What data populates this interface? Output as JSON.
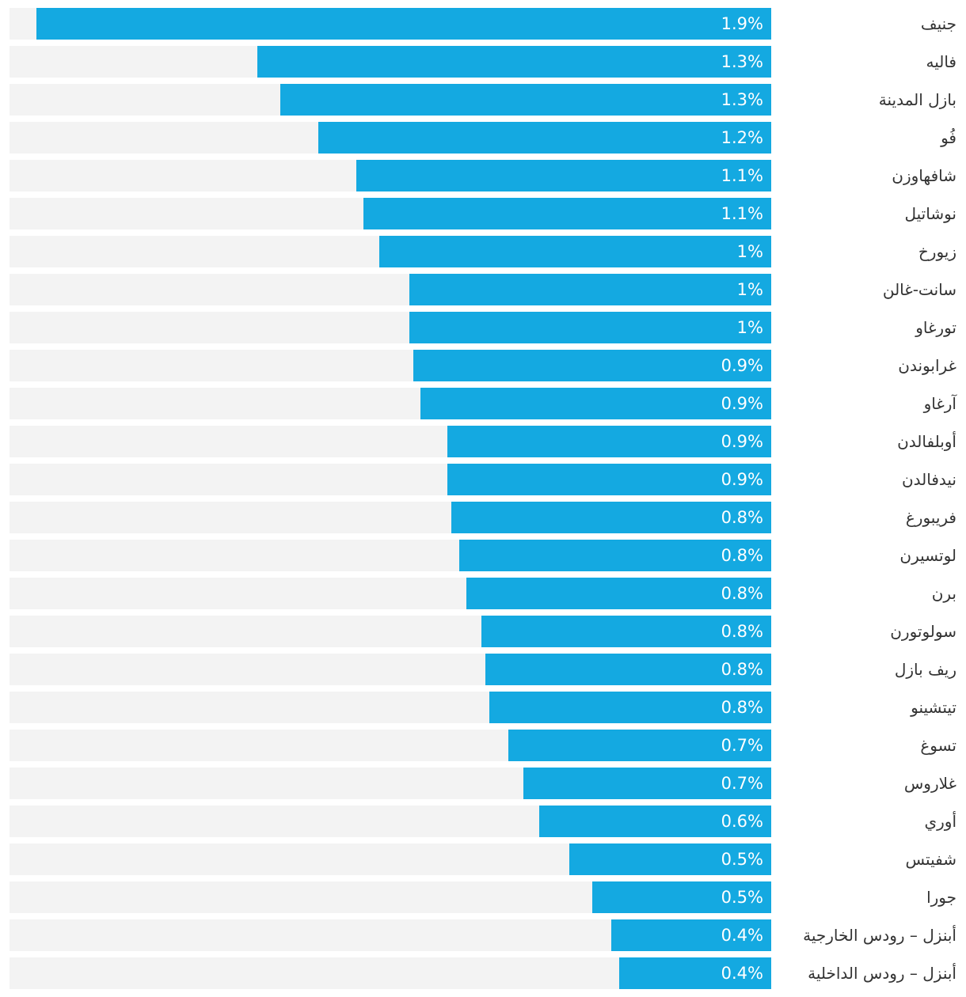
{
  "chart_data": {
    "type": "bar",
    "orientation": "horizontal",
    "xlim": [
      0,
      2.0
    ],
    "bar_color": "#14a9e1",
    "track_color": "#f3f3f3",
    "categories": [
      "جنيف",
      "فاليه",
      "بازل المدينة",
      "فُو",
      "شافهاوزن",
      "نوشاتيل",
      "زيورخ",
      "سانت-غالن",
      "تورغاو",
      "غرابوندن",
      "آرغاو",
      "أوبلفالدن",
      "نيدفالدن",
      "فريبورغ",
      "لوتسيرن",
      "برن",
      "سولوتورن",
      "ريف بازل",
      "تيتشينو",
      "تسوغ",
      "غلاروس",
      "أوري",
      "شفيتس",
      "جورا",
      "أبنزل – رودس الخارجية",
      "أبنزل – رودس الداخلية"
    ],
    "values": [
      1.9,
      1.3,
      1.3,
      1.2,
      1.1,
      1.1,
      1.0,
      1.0,
      1.0,
      0.9,
      0.9,
      0.9,
      0.9,
      0.8,
      0.8,
      0.8,
      0.8,
      0.8,
      0.8,
      0.7,
      0.7,
      0.6,
      0.5,
      0.5,
      0.4,
      0.4
    ],
    "precise_values": [
      1.93,
      1.35,
      1.29,
      1.19,
      1.09,
      1.07,
      1.03,
      0.95,
      0.95,
      0.94,
      0.92,
      0.85,
      0.85,
      0.84,
      0.82,
      0.8,
      0.76,
      0.75,
      0.74,
      0.69,
      0.65,
      0.61,
      0.53,
      0.47,
      0.42,
      0.4
    ],
    "value_labels": [
      "1.9%",
      "1.3%",
      "1.3%",
      "1.2%",
      "1.1%",
      "1.1%",
      "1%",
      "1%",
      "1%",
      "0.9%",
      "0.9%",
      "0.9%",
      "0.9%",
      "0.8%",
      "0.8%",
      "0.8%",
      "0.8%",
      "0.8%",
      "0.8%",
      "0.7%",
      "0.7%",
      "0.6%",
      "0.5%",
      "0.5%",
      "0.4%",
      "0.4%"
    ]
  }
}
